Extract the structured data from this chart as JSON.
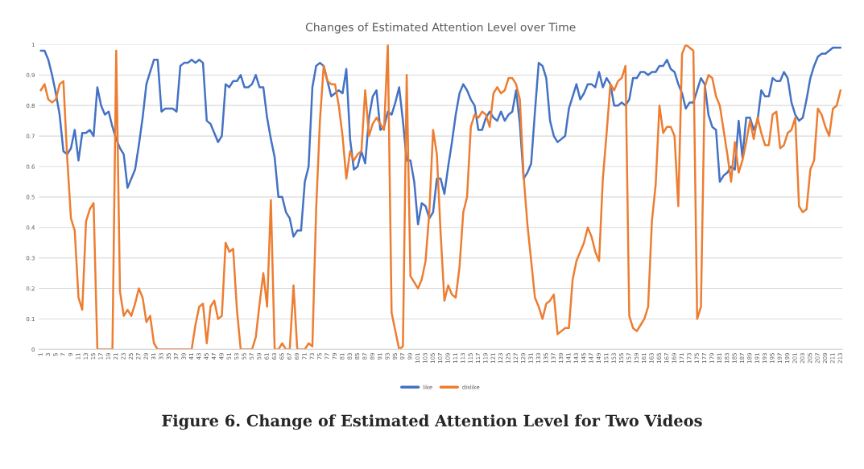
{
  "chart_data": {
    "type": "line",
    "title": "Changes of Estimated Attention Level over Time",
    "categories": [
      "1",
      null,
      "3",
      null,
      "5",
      null,
      "7",
      null,
      "9",
      null,
      "11",
      null,
      "13",
      null,
      "15",
      null,
      "17",
      null,
      "19",
      null,
      "21",
      null,
      "23",
      null,
      "25",
      null,
      "27",
      null,
      "29",
      null,
      "31",
      null,
      "33",
      null,
      "35",
      null,
      "37",
      null,
      "39",
      null,
      "41",
      null,
      "43",
      null,
      "45",
      null,
      "47",
      null,
      "49",
      null,
      "51",
      null,
      "53",
      null,
      "55",
      null,
      "57",
      null,
      "59",
      null,
      "61",
      null,
      "63",
      null,
      "65",
      null,
      "67",
      null,
      "69",
      null,
      "71",
      null,
      "73",
      null,
      "75",
      null,
      "77",
      null,
      "79",
      null,
      "81",
      null,
      "83",
      null,
      "85",
      null,
      "87",
      null,
      "89",
      null,
      "91",
      null,
      "93",
      null,
      "95",
      null,
      "97",
      null,
      "99",
      null,
      "101",
      null,
      "103",
      null,
      "105",
      null,
      "107",
      null,
      "109",
      null,
      "111",
      null,
      "113",
      null,
      "115",
      null,
      "117",
      null,
      "119",
      null,
      "121",
      null,
      "123",
      null,
      "125",
      null,
      "127",
      null,
      "129",
      null,
      "131",
      null,
      "133",
      null,
      "135",
      null,
      "137",
      null,
      "139",
      null,
      "141",
      null,
      "143",
      null,
      "145",
      null,
      "147",
      null,
      "149",
      null,
      "151",
      null,
      "153",
      null,
      "155",
      null,
      "157",
      null,
      "159",
      null,
      "161",
      null,
      "163",
      null,
      "165",
      null,
      "167",
      null,
      "169",
      null,
      "171",
      null,
      "173",
      null,
      "175",
      null,
      "177",
      null,
      "179",
      null,
      "181",
      null,
      "183",
      null,
      "185",
      null,
      "187",
      null,
      "189",
      null,
      "191",
      null,
      "193",
      null,
      "195",
      null,
      "197",
      null,
      "199",
      null,
      "201",
      null,
      "203",
      null,
      "205",
      null,
      "207",
      null,
      "209",
      null,
      "211",
      null,
      "213"
    ],
    "series": [
      {
        "name": "like",
        "color": "#4472c4",
        "values": [
          0.98,
          0.98,
          0.95,
          0.9,
          0.84,
          0.77,
          0.65,
          0.64,
          0.66,
          0.72,
          0.62,
          0.71,
          0.71,
          0.72,
          0.7,
          0.86,
          0.8,
          0.77,
          0.78,
          0.73,
          0.69,
          0.66,
          0.64,
          0.53,
          0.56,
          0.59,
          0.67,
          0.76,
          0.87,
          0.91,
          0.95,
          0.95,
          0.78,
          0.79,
          0.79,
          0.79,
          0.78,
          0.93,
          0.94,
          0.94,
          0.95,
          0.94,
          0.95,
          0.94,
          0.75,
          0.74,
          0.71,
          0.68,
          0.7,
          0.87,
          0.86,
          0.88,
          0.88,
          0.9,
          0.86,
          0.86,
          0.87,
          0.9,
          0.86,
          0.86,
          0.76,
          0.69,
          0.63,
          0.5,
          0.5,
          0.45,
          0.43,
          0.37,
          0.39,
          0.39,
          0.55,
          0.6,
          0.86,
          0.93,
          0.94,
          0.93,
          0.88,
          0.83,
          0.84,
          0.85,
          0.84,
          0.92,
          0.69,
          0.59,
          0.6,
          0.65,
          0.61,
          0.76,
          0.83,
          0.85,
          0.72,
          0.73,
          0.78,
          0.77,
          0.81,
          0.86,
          0.75,
          0.62,
          0.62,
          0.55,
          0.41,
          0.48,
          0.47,
          0.43,
          0.45,
          0.56,
          0.56,
          0.51,
          0.6,
          0.68,
          0.77,
          0.84,
          0.87,
          0.85,
          0.82,
          0.8,
          0.72,
          0.72,
          0.76,
          0.78,
          0.76,
          0.75,
          0.78,
          0.75,
          0.77,
          0.78,
          0.85,
          0.74,
          0.56,
          0.58,
          0.61,
          0.78,
          0.94,
          0.93,
          0.89,
          0.75,
          0.7,
          0.68,
          0.69,
          0.7,
          0.79,
          0.83,
          0.87,
          0.82,
          0.84,
          0.87,
          0.87,
          0.86,
          0.91,
          0.86,
          0.89,
          0.87,
          0.8,
          0.8,
          0.81,
          0.8,
          0.82,
          0.89,
          0.89,
          0.91,
          0.91,
          0.9,
          0.91,
          0.91,
          0.93,
          0.93,
          0.95,
          0.92,
          0.91,
          0.87,
          0.84,
          0.79,
          0.81,
          0.81,
          0.85,
          0.89,
          0.87,
          0.77,
          0.73,
          0.72,
          0.55,
          0.57,
          0.58,
          0.6,
          0.59,
          0.75,
          0.63,
          0.76,
          0.76,
          0.72,
          0.75,
          0.85,
          0.83,
          0.83,
          0.89,
          0.88,
          0.88,
          0.91,
          0.89,
          0.81,
          0.77,
          0.75,
          0.76,
          0.82,
          0.89,
          0.93,
          0.96,
          0.97,
          0.97,
          0.98,
          0.99,
          0.99,
          0.99
        ]
      },
      {
        "name": "dislike",
        "color": "#ed7d31",
        "values": [
          0.85,
          0.87,
          0.82,
          0.81,
          0.82,
          0.87,
          0.88,
          0.63,
          0.43,
          0.39,
          0.17,
          0.13,
          0.42,
          0.46,
          0.48,
          0,
          0,
          0,
          0,
          0,
          0.98,
          0.19,
          0.11,
          0.13,
          0.11,
          0.15,
          0.2,
          0.17,
          0.09,
          0.11,
          0.02,
          0,
          0,
          0,
          0,
          0,
          0,
          0,
          0,
          0,
          0,
          0.08,
          0.14,
          0.15,
          0.02,
          0.14,
          0.16,
          0.1,
          0.11,
          0.35,
          0.32,
          0.33,
          0.13,
          0,
          0,
          0,
          0,
          0.04,
          0.15,
          0.25,
          0.14,
          0.49,
          0,
          0,
          0.02,
          0,
          0,
          0.21,
          0,
          0,
          0,
          0.02,
          0.01,
          0.46,
          0.75,
          0.93,
          0.88,
          0.87,
          0.87,
          0.8,
          0.7,
          0.56,
          0.65,
          0.62,
          0.64,
          0.65,
          0.85,
          0.7,
          0.74,
          0.76,
          0.74,
          0.72,
          1.0,
          0.12,
          0.06,
          0,
          0.01,
          0.9,
          0.24,
          0.22,
          0.2,
          0.23,
          0.29,
          0.45,
          0.72,
          0.64,
          0.38,
          0.16,
          0.21,
          0.18,
          0.17,
          0.27,
          0.45,
          0.5,
          0.73,
          0.77,
          0.76,
          0.78,
          0.77,
          0.73,
          0.84,
          0.86,
          0.84,
          0.85,
          0.89,
          0.89,
          0.87,
          0.82,
          0.57,
          0.41,
          0.29,
          0.17,
          0.14,
          0.1,
          0.15,
          0.16,
          0.18,
          0.05,
          0.06,
          0.07,
          0.07,
          0.23,
          0.29,
          0.32,
          0.35,
          0.4,
          0.37,
          0.32,
          0.29,
          0.56,
          0.71,
          0.87,
          0.85,
          0.88,
          0.89,
          0.93,
          0.11,
          0.07,
          0.06,
          0.08,
          0.1,
          0.14,
          0.42,
          0.54,
          0.8,
          0.71,
          0.73,
          0.73,
          0.7,
          0.47,
          0.97,
          1.0,
          0.99,
          0.98,
          0.1,
          0.14,
          0.86,
          0.9,
          0.89,
          0.83,
          0.8,
          0.72,
          0.64,
          0.55,
          0.68,
          0.58,
          0.62,
          0.68,
          0.75,
          0.69,
          0.76,
          0.71,
          0.67,
          0.67,
          0.77,
          0.78,
          0.66,
          0.67,
          0.71,
          0.72,
          0.76,
          0.47,
          0.45,
          0.46,
          0.59,
          0.62,
          0.79,
          0.77,
          0.73,
          0.7,
          0.79,
          0.8,
          0.85
        ]
      }
    ],
    "ylim": [
      0,
      1
    ],
    "yticks": [
      0,
      0.1,
      0.2,
      0.3,
      0.4,
      0.5,
      0.6,
      0.7,
      0.8,
      0.9,
      1
    ],
    "grid": "y",
    "legend": "bottom",
    "line_style": "solid",
    "annotations": [
      "Figure 6. Change of Estimated Attention Level for Two Videos"
    ]
  }
}
